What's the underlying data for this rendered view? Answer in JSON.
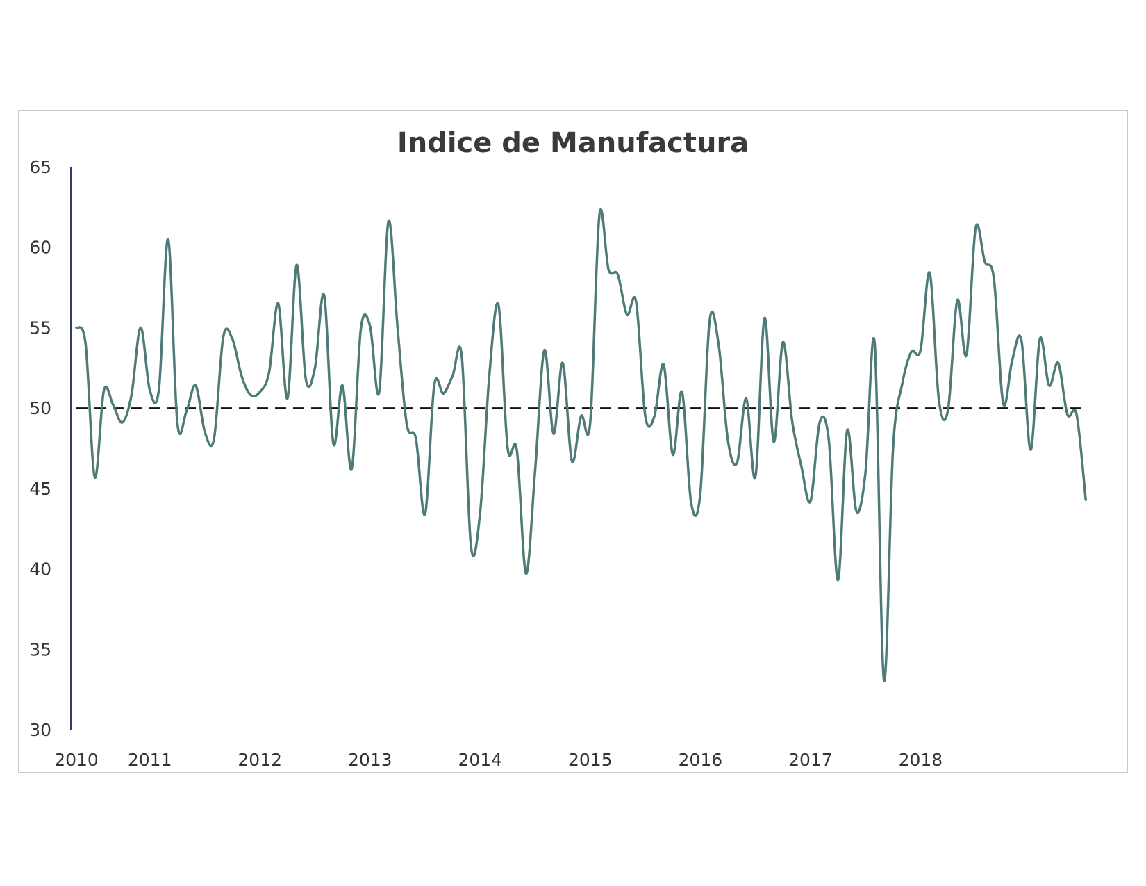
{
  "chart_data": {
    "type": "line",
    "title": "Indice de Manufactura",
    "xlabel": "",
    "ylabel": "",
    "ylim": [
      30,
      65
    ],
    "yticks": [
      30,
      35,
      40,
      45,
      50,
      55,
      60,
      65
    ],
    "xticks": [
      {
        "label": "2010",
        "x": 0
      },
      {
        "label": "2011",
        "x": 8
      },
      {
        "label": "2012",
        "x": 20
      },
      {
        "label": "2013",
        "x": 32
      },
      {
        "label": "2014",
        "x": 44
      },
      {
        "label": "2015",
        "x": 56
      },
      {
        "label": "2016",
        "x": 68
      },
      {
        "label": "2017",
        "x": 80
      },
      {
        "label": "2018",
        "x": 92
      }
    ],
    "x_range": [
      0,
      109
    ],
    "grid": false,
    "colors": {
      "line": "#4e7b78",
      "reference": "#111111",
      "axis": "#3d3a6b"
    },
    "reference_line": {
      "y": 50,
      "style": "dashed"
    },
    "series": [
      {
        "values": [
          55.0,
          54.0,
          45.7,
          51.1,
          50.2,
          49.1,
          50.8,
          55.0,
          51.1,
          51.2,
          60.5,
          49.1,
          49.8,
          51.4,
          48.5,
          48.1,
          54.4,
          54.3,
          52.0,
          50.8,
          51.0,
          52.2,
          56.5,
          50.6,
          58.9,
          51.8,
          52.5,
          57.0,
          47.8,
          51.4,
          46.2,
          54.9,
          55.1,
          51.0,
          61.6,
          55.0,
          49.0,
          48.1,
          43.4,
          51.4,
          50.9,
          52.0,
          53.2,
          41.4,
          43.5,
          52.0,
          56.4,
          47.5,
          47.4,
          39.7,
          46.2,
          53.6,
          48.4,
          52.8,
          46.7,
          49.5,
          49.1,
          62.0,
          58.6,
          58.3,
          55.8,
          56.6,
          49.5,
          49.5,
          52.7,
          47.1,
          51.0,
          44.1,
          44.7,
          55.4,
          53.9,
          48.0,
          46.6,
          50.6,
          45.7,
          55.6,
          47.9,
          54.1,
          49.2,
          46.4,
          44.2,
          49.1,
          48.0,
          39.3,
          48.6,
          43.6,
          46.0,
          54.0,
          33.1,
          47.5,
          51.5,
          53.5,
          53.6,
          58.4,
          50.5,
          49.9,
          56.7,
          53.3,
          61.2,
          59.1,
          58.0,
          50.3,
          53.0,
          54.2,
          47.4,
          54.3,
          51.4,
          52.8,
          49.6,
          49.6,
          44.3
        ]
      }
    ]
  }
}
